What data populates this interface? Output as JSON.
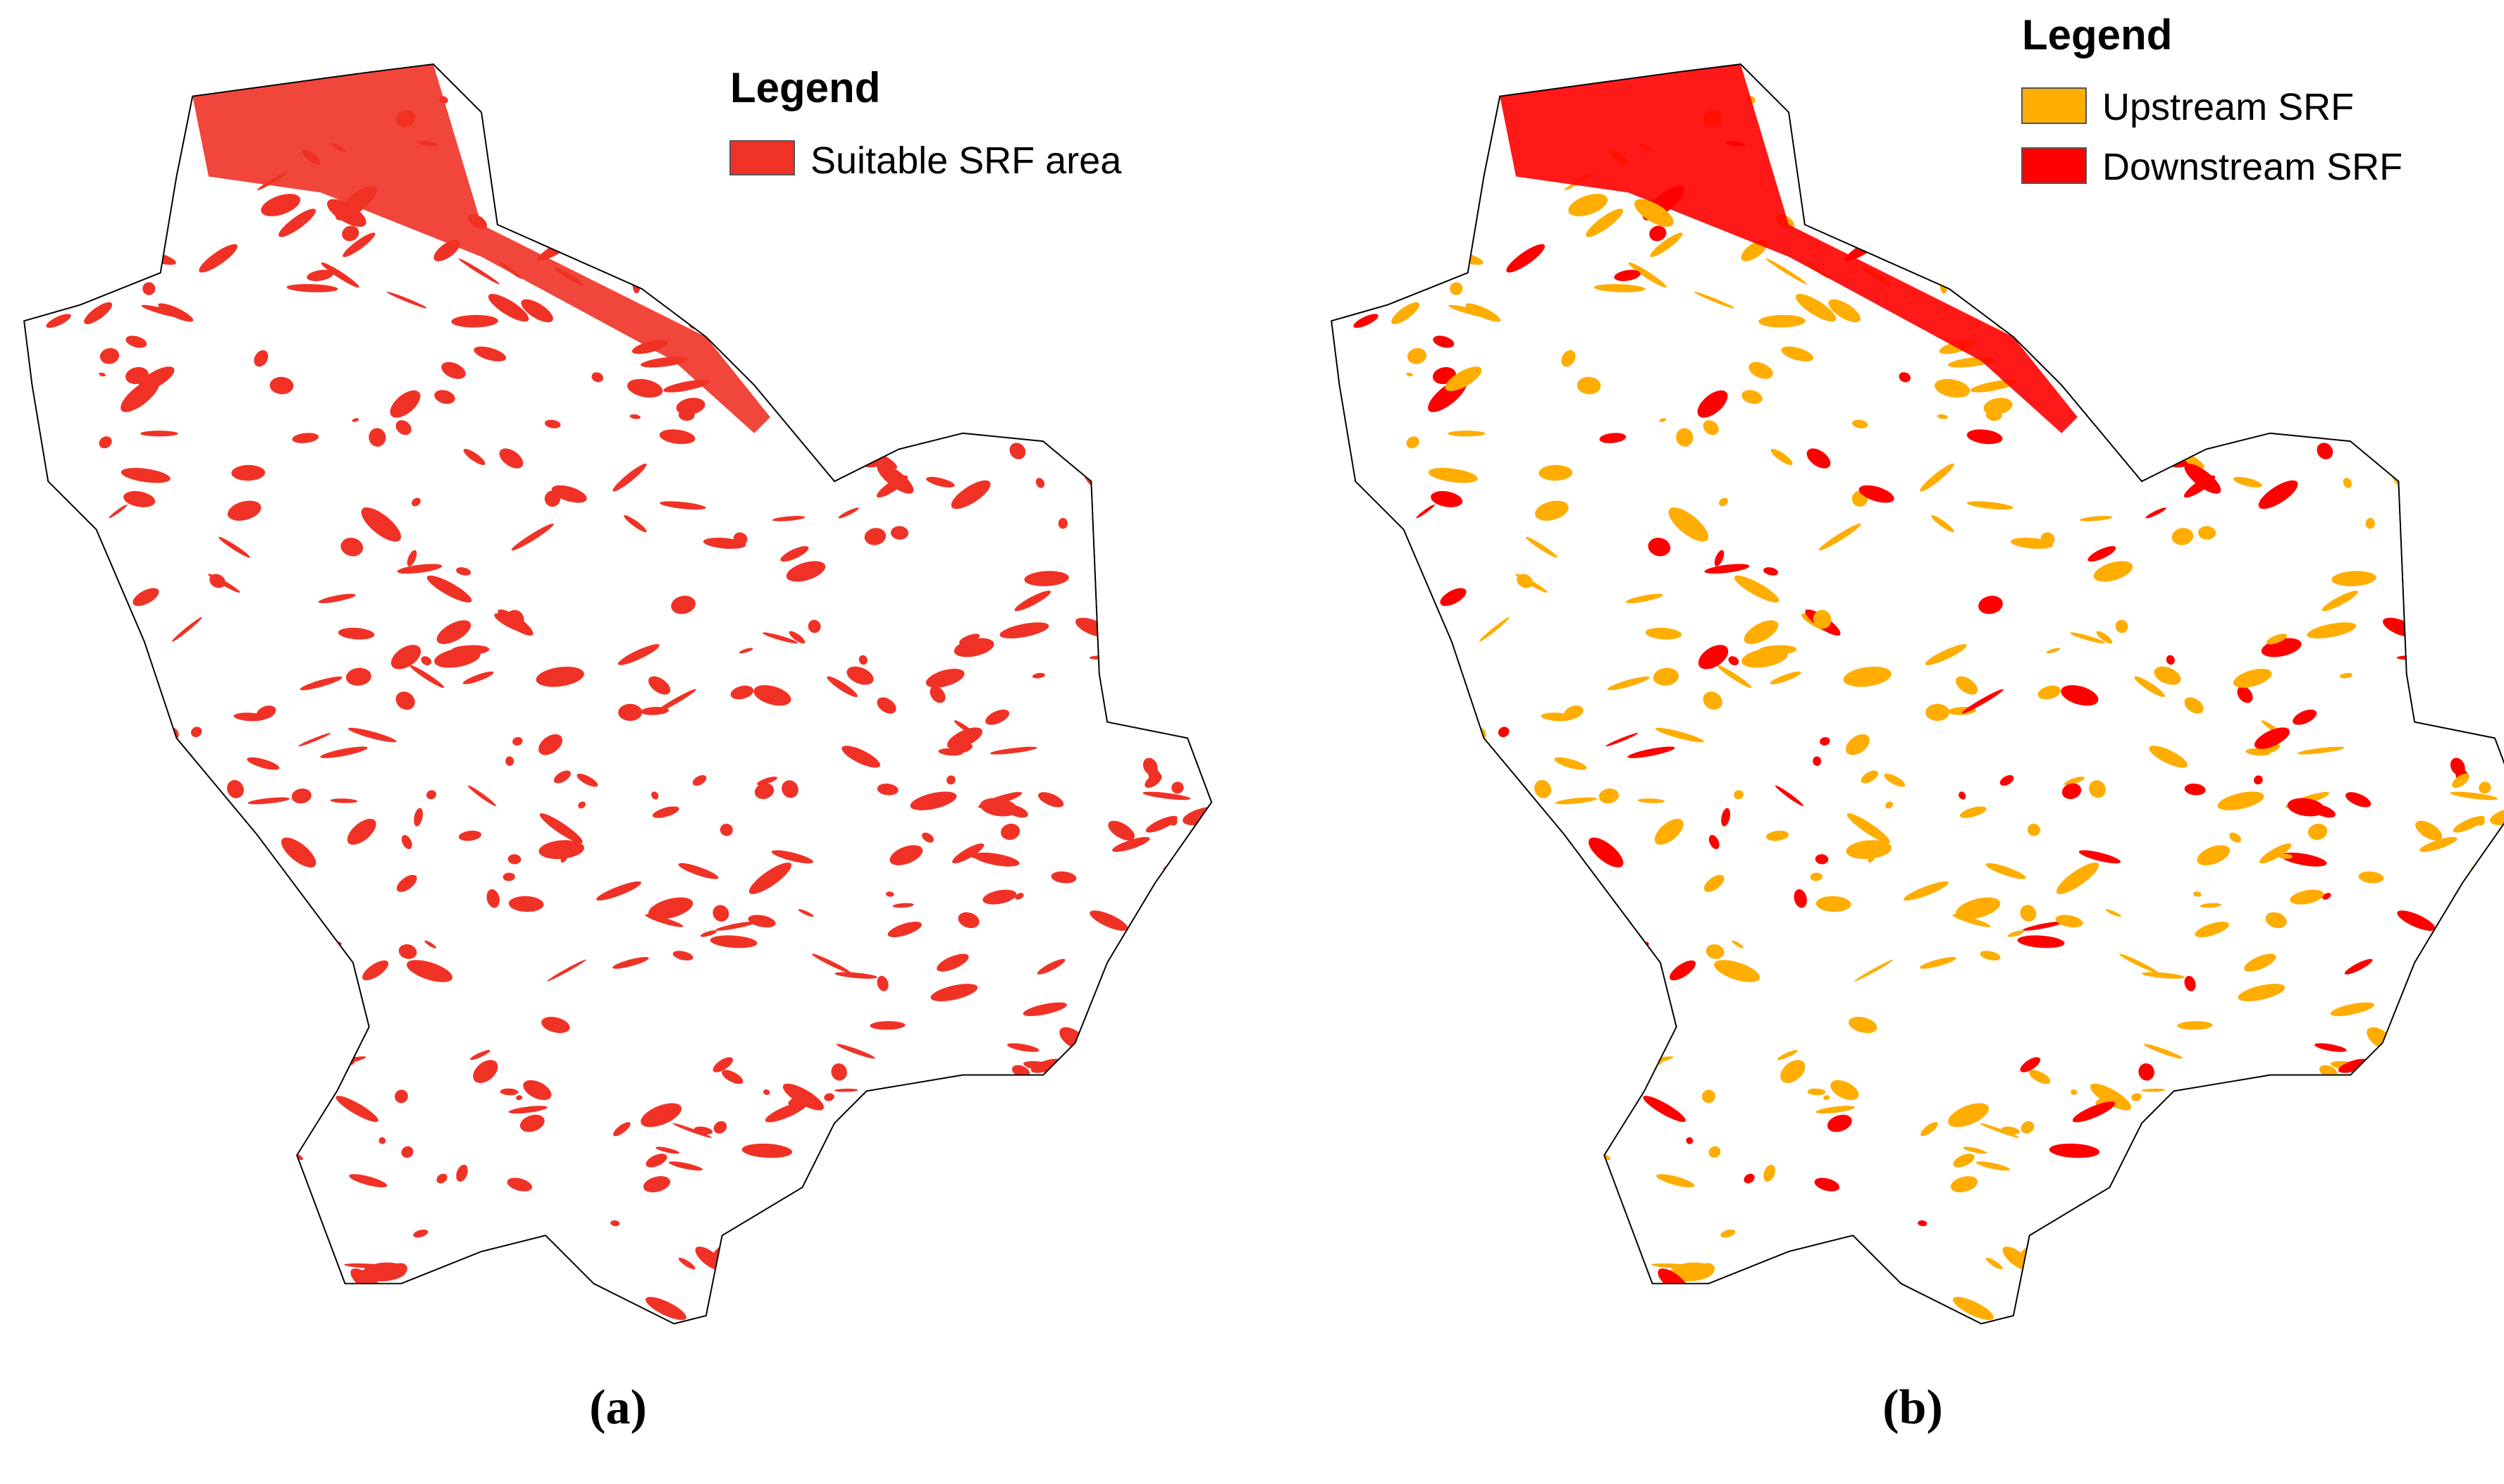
{
  "panels": [
    {
      "legend": {
        "title": "Legend",
        "items": [
          {
            "label": "Suitable SRF area",
            "color": "#f03226"
          }
        ]
      },
      "caption": "(a)"
    },
    {
      "legend": {
        "title": "Legend",
        "items": [
          {
            "label": "Upstream SRF",
            "color": "#ffad00"
          },
          {
            "label": "Downstream SRF",
            "color": "#ff0000"
          }
        ]
      },
      "caption": "(b)"
    }
  ]
}
